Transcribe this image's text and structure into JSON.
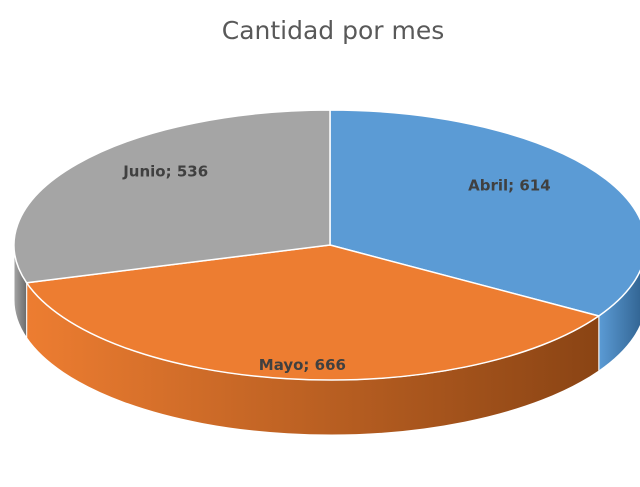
{
  "chart_data": {
    "type": "pie",
    "title": "Cantidad por mes",
    "values": [
      614,
      666,
      536
    ],
    "value_labels": [
      "Abril; 614",
      "Mayo; 666",
      "Junio; 536"
    ],
    "colors": [
      "#5b9bd5",
      "#ed7d31",
      "#a5a5a5"
    ],
    "side_colors": [
      "#2e5f8c",
      "#8a4414",
      "#6b6b6b"
    ],
    "three_d": true
  }
}
